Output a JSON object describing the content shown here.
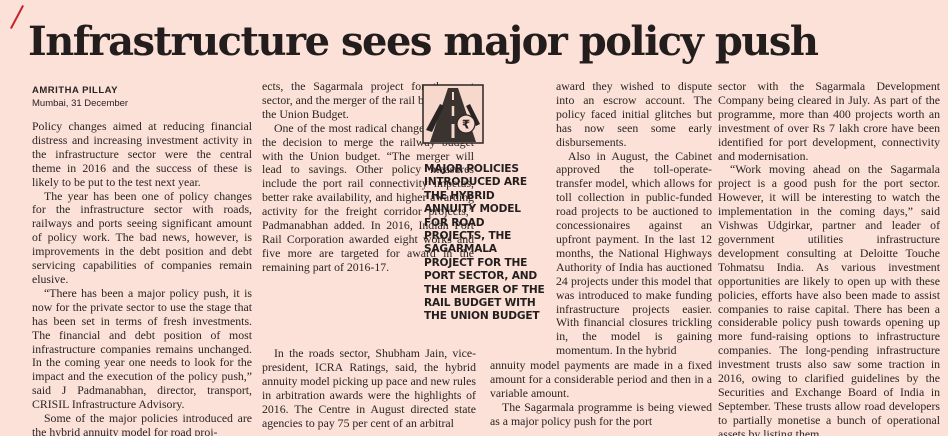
{
  "article": {
    "headline": "Infrastructure sees major policy push",
    "author": "AMRITHA PILLAY",
    "dateline": "Mumbai, 31 December",
    "pull_quote": "MAJOR POLICIES INTRODUCED ARE THE HYBRID ANNUITY MODEL FOR ROAD PROJECTS, THE SAGARMALA PROJECT FOR THE PORT SECTOR, AND THE MERGER OF THE RAIL BUDGET WITH THE UNION BUDGET",
    "col1": [
      "Policy changes aimed at reducing financial distress and increasing investment activity in the infrastructure sector were the central theme in 2016 and the success of these is likely to be put to the test next year.",
      "The year has been one of policy changes for the infrastructure sector with roads, railways and ports seeing significant amount of policy work. The bad news, however, is improvements in the debt position and debt servicing capabilities of companies remain elusive.",
      "“There has been a major policy push, it is now for the private sector to use the stage that has been set in terms of fresh investments. The financial and debt position of most infrastructure companies remains unchanged. In the coming year one needs to look for the impact and the execution of the policy push,” said J Padmanabhan, director, transport, CRISIL Infrastructure Advisory.",
      "Some of the major policies introduced are the hybrid annuity model for road proj-"
    ],
    "col2": [
      "ects, the Sagarmala project for the port sector, and the merger of the rail budget with the Union Budget.",
      "One of the most radical changes has been the decision to merge the railway budget with the Union budget. “The merger will lead to savings. Other policy measures include the port rail connectivity impetus, better rake availability, and higher awarding activity for the freight corridor projects,” Padmanabhan added. In 2016, Indian Port Rail Corporation awarded eight works and five more are targeted for award in the remaining part of 2016-17."
    ],
    "col2b": [
      "In the roads sector, Shubham Jain, vice-president, ICRA Ratings, said, the hybrid annuity model picking up pace and new rules in arbitration awards were the highlights of 2016. The Centre in August directed state agencies to pay 75 per cent of an arbitral"
    ],
    "col3": [
      "award they wished to dispute into an escrow account. The policy faced initial glitches but has now seen some early disbursements.",
      "Also in August, the Cabinet approved the toll-operate-transfer model, which allows for toll collection in public-funded road projects to be auctioned to concessionaires against an upfront payment. In the last 12 months, the National Highways Authority of India has auctioned 24 projects under this model that was introduced to make funding infrastructure projects easier. With financial closures trickling in, the model is gaining momentum. In the hybrid"
    ],
    "col3b": [
      "annuity model payments are made in a fixed amount for a considerable period and then in a variable amount.",
      "The Sagarmala programme is being viewed as a major policy push for the port"
    ],
    "col4": [
      "sector with the Sagarmala Development Company being cleared in July. As part of the programme, more than 400 projects worth an investment of over Rs 7 lakh crore have been identified for port development, connectivity and modernisation.",
      "“Work moving ahead on the Sagarmala project is a good push for the port sector. However, it will be interesting to watch the implementation in the coming days,” said Vishwas Udgirkar, partner and leader of government utilities infrastructure development consulting at Deloitte Touche Tohmatsu India. As various investment opportunities are likely to open up with these policies, efforts have also been made to assist companies to raise capital. There has been a considerable policy push towards opening up more fund-raising options to infrastructure companies. The long-pending infrastructure investment trusts also saw some traction in 2016, owing to clarified guidelines by the Securities and Exchange Board of India in September. These trusts allow road developers to partially monetise a bunch of operational assets by listing them."
    ]
  },
  "icons": {
    "section_icon": "road-and-rupee-icon",
    "accent_color": "#c8242c",
    "paper_color": "#fbe1d8"
  }
}
